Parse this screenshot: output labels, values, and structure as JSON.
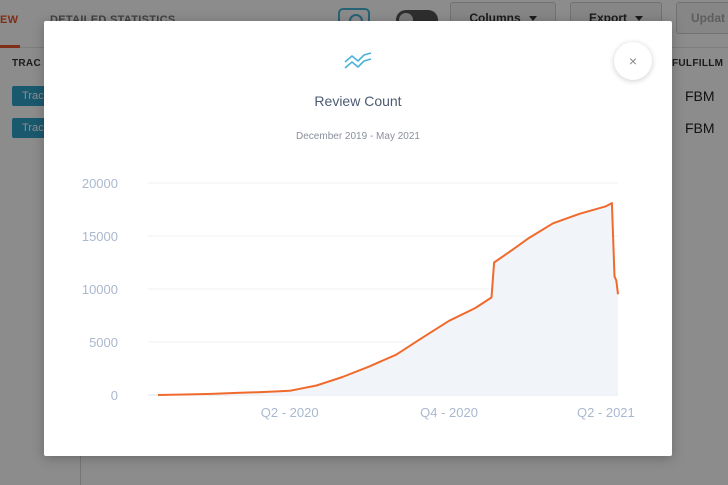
{
  "background": {
    "tabs": [
      {
        "label": "EW"
      },
      {
        "label": "DETAILED STATISTICS"
      }
    ],
    "buttons": {
      "columns": "Columns",
      "export": "Export",
      "update": "Updat"
    },
    "table": {
      "headers": {
        "tracked": "TRAC",
        "fulfillment": "FULFILLM"
      },
      "rows": [
        {
          "tag": "Trac",
          "fulfillment": "FBM"
        },
        {
          "tag": "Trac",
          "fulfillment": "FBM"
        }
      ]
    }
  },
  "modal": {
    "title": "Review Count",
    "subtitle": "December 2019 - May 2021",
    "icon": "trend-lines-icon",
    "close_label": "×"
  },
  "colors": {
    "accent": "#e8562a",
    "line": "#f06a2c",
    "area": "#f1f4f8",
    "tag": "#2fa3c8"
  },
  "chart_data": {
    "type": "area",
    "title": "",
    "xlabel": "",
    "ylabel": "",
    "ylim": [
      0,
      20000
    ],
    "yticks": [
      0,
      5000,
      10000,
      15000,
      20000
    ],
    "xticks": [
      {
        "label": "Q2 - 2020",
        "date": "2020-05-01"
      },
      {
        "label": "Q4 - 2020",
        "date": "2020-11-01"
      },
      {
        "label": "Q2 - 2021",
        "date": "2021-05-01"
      }
    ],
    "xlim": [
      "2019-12-01",
      "2021-05-15"
    ],
    "grid": true,
    "legend": "none",
    "series": [
      {
        "points": [
          [
            "2019-12-01",
            0
          ],
          [
            "2020-01-01",
            50
          ],
          [
            "2020-02-01",
            100
          ],
          [
            "2020-03-01",
            200
          ],
          [
            "2020-04-01",
            280
          ],
          [
            "2020-05-01",
            400
          ],
          [
            "2020-06-01",
            900
          ],
          [
            "2020-07-01",
            1700
          ],
          [
            "2020-08-01",
            2700
          ],
          [
            "2020-09-01",
            3800
          ],
          [
            "2020-10-01",
            5400
          ],
          [
            "2020-11-01",
            7000
          ],
          [
            "2020-12-01",
            8200
          ],
          [
            "2020-12-20",
            9200
          ],
          [
            "2020-12-23",
            12500
          ],
          [
            "2021-01-15",
            13800
          ],
          [
            "2021-02-01",
            14800
          ],
          [
            "2021-03-01",
            16200
          ],
          [
            "2021-04-01",
            17100
          ],
          [
            "2021-05-01",
            17800
          ],
          [
            "2021-05-08",
            18100
          ],
          [
            "2021-05-11",
            11200
          ],
          [
            "2021-05-13",
            10800
          ],
          [
            "2021-05-15",
            9500
          ]
        ]
      }
    ]
  }
}
